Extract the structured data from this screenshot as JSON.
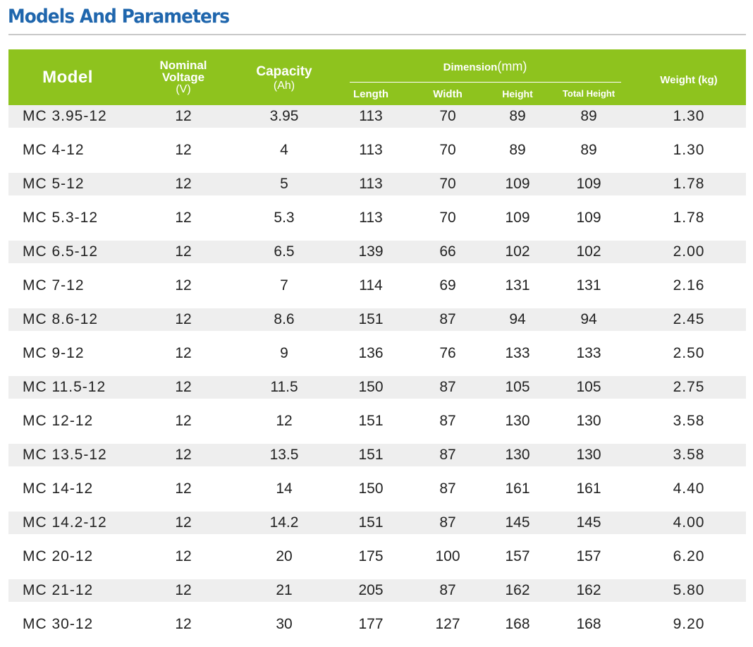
{
  "title": "Models And Parameters",
  "header": {
    "model": "Model",
    "voltage_line1": "Nominal",
    "voltage_line2": "Voltage",
    "voltage_unit": "(V)",
    "capacity": "Capacity",
    "capacity_unit": "(Ah)",
    "dimension": "Dimension",
    "dimension_unit": "(mm)",
    "length": "Length",
    "width": "Width",
    "height": "Height",
    "total_height": "Total Height",
    "weight": "Weight (kg)"
  },
  "colors": {
    "title": "#1f66ad",
    "header_bg": "#8ec31e",
    "stripe": "#eeeeee"
  },
  "rows": [
    {
      "model": "MC 3.95-12",
      "voltage": "12",
      "capacity": "3.95",
      "length": "113",
      "width": "70",
      "height": "89",
      "total_height": "89",
      "weight": "1.30"
    },
    {
      "model": "MC 4-12",
      "voltage": "12",
      "capacity": "4",
      "length": "113",
      "width": "70",
      "height": "89",
      "total_height": "89",
      "weight": "1.30"
    },
    {
      "model": "MC 5-12",
      "voltage": "12",
      "capacity": "5",
      "length": "113",
      "width": "70",
      "height": "109",
      "total_height": "109",
      "weight": "1.78"
    },
    {
      "model": "MC 5.3-12",
      "voltage": "12",
      "capacity": "5.3",
      "length": "113",
      "width": "70",
      "height": "109",
      "total_height": "109",
      "weight": "1.78"
    },
    {
      "model": "MC 6.5-12",
      "voltage": "12",
      "capacity": "6.5",
      "length": "139",
      "width": "66",
      "height": "102",
      "total_height": "102",
      "weight": "2.00"
    },
    {
      "model": "MC 7-12",
      "voltage": "12",
      "capacity": "7",
      "length": "114",
      "width": "69",
      "height": "131",
      "total_height": "131",
      "weight": "2.16"
    },
    {
      "model": "MC 8.6-12",
      "voltage": "12",
      "capacity": "8.6",
      "length": "151",
      "width": "87",
      "height": "94",
      "total_height": "94",
      "weight": "2.45"
    },
    {
      "model": "MC 9-12",
      "voltage": "12",
      "capacity": "9",
      "length": "136",
      "width": "76",
      "height": "133",
      "total_height": "133",
      "weight": "2.50"
    },
    {
      "model": "MC 11.5-12",
      "voltage": "12",
      "capacity": "11.5",
      "length": "150",
      "width": "87",
      "height": "105",
      "total_height": "105",
      "weight": "2.75"
    },
    {
      "model": "MC 12-12",
      "voltage": "12",
      "capacity": "12",
      "length": "151",
      "width": "87",
      "height": "130",
      "total_height": "130",
      "weight": "3.58"
    },
    {
      "model": "MC 13.5-12",
      "voltage": "12",
      "capacity": "13.5",
      "length": "151",
      "width": "87",
      "height": "130",
      "total_height": "130",
      "weight": "3.58"
    },
    {
      "model": "MC 14-12",
      "voltage": "12",
      "capacity": "14",
      "length": "150",
      "width": "87",
      "height": "161",
      "total_height": "161",
      "weight": "4.40"
    },
    {
      "model": "MC 14.2-12",
      "voltage": "12",
      "capacity": "14.2",
      "length": "151",
      "width": "87",
      "height": "145",
      "total_height": "145",
      "weight": "4.00"
    },
    {
      "model": "MC 20-12",
      "voltage": "12",
      "capacity": "20",
      "length": "175",
      "width": "100",
      "height": "157",
      "total_height": "157",
      "weight": "6.20"
    },
    {
      "model": "MC 21-12",
      "voltage": "12",
      "capacity": "21",
      "length": "205",
      "width": "87",
      "height": "162",
      "total_height": "162",
      "weight": "5.80"
    },
    {
      "model": "MC 30-12",
      "voltage": "12",
      "capacity": "30",
      "length": "177",
      "width": "127",
      "height": "168",
      "total_height": "168",
      "weight": "9.20"
    }
  ]
}
